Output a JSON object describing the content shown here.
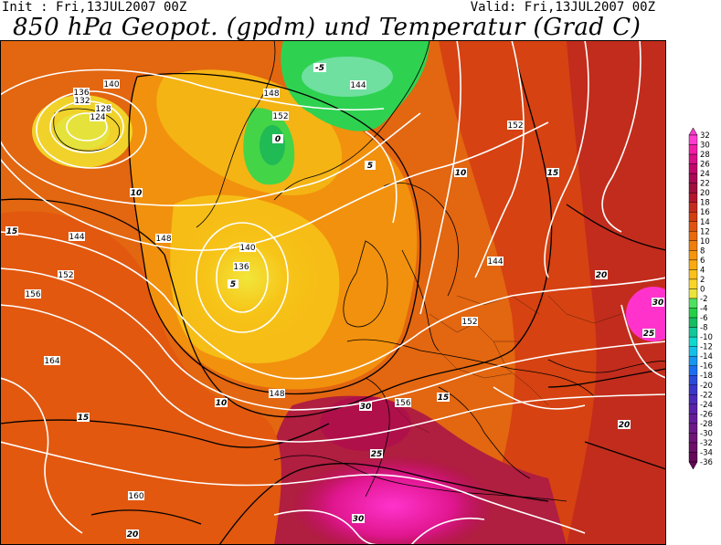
{
  "header": {
    "init_text": "Init : Fri,13JUL2007 00Z",
    "valid_text": "Valid: Fri,13JUL2007 00Z",
    "title": "850 hPa Geopot. (gpdm) und Temperatur (Grad C)"
  },
  "geopotential_labels": [
    "124",
    "128",
    "132",
    "136",
    "140",
    "144",
    "148",
    "152",
    "156",
    "160",
    "164"
  ],
  "temperature_labels": [
    "-5",
    "0",
    "5",
    "10",
    "15",
    "20",
    "25",
    "30"
  ],
  "color_scale": {
    "levels": [
      "32",
      "30",
      "28",
      "26",
      "24",
      "22",
      "20",
      "18",
      "16",
      "14",
      "12",
      "10",
      "8",
      "6",
      "4",
      "2",
      "0",
      "-2",
      "-4",
      "-6",
      "-8",
      "-10",
      "-12",
      "-14",
      "-16",
      "-18",
      "-20",
      "-22",
      "-24",
      "-26",
      "-28",
      "-30",
      "-32",
      "-34",
      "-36"
    ],
    "colors": [
      "#ff3ccf",
      "#f21ea8",
      "#d80f86",
      "#c0086b",
      "#a80a55",
      "#a0103f",
      "#b3162c",
      "#c42a1e",
      "#d23d12",
      "#df5310",
      "#e8690e",
      "#f07e0c",
      "#f6950c",
      "#f9aa10",
      "#fbc11a",
      "#f9d52a",
      "#e8e43c",
      "#50e060",
      "#25d048",
      "#16bd60",
      "#12c89a",
      "#10d8d0",
      "#14c0e8",
      "#1896f0",
      "#1c6ef0",
      "#2a4ad8",
      "#3a34c8",
      "#4c28b8",
      "#5a20a8",
      "#661c98",
      "#6c1888",
      "#701478",
      "#6c1068",
      "#640a58"
    ]
  }
}
